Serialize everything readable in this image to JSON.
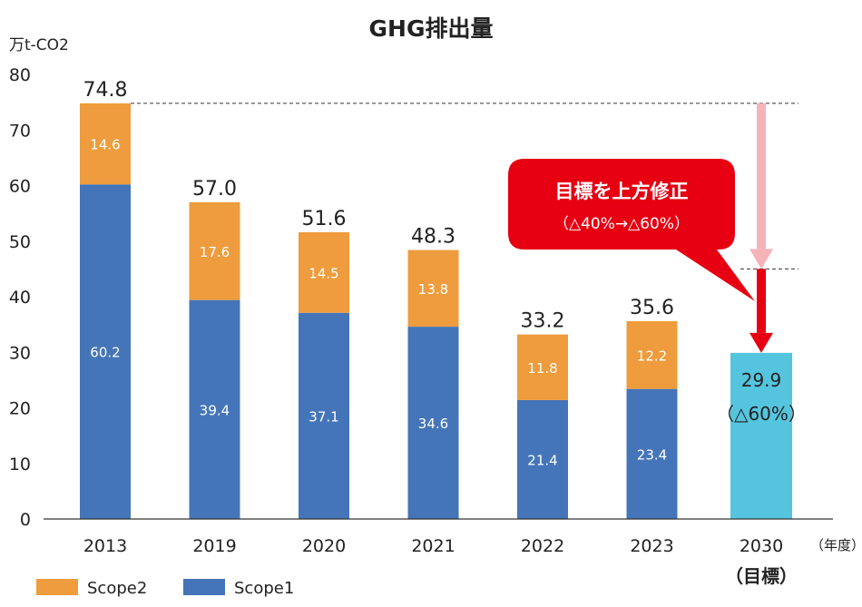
{
  "chart_data": {
    "type": "bar",
    "stacked": true,
    "title": "GHG排出量",
    "ylabel": "万t-CO2",
    "ylim": [
      0,
      80
    ],
    "yticks": [
      0,
      10,
      20,
      30,
      40,
      50,
      60,
      70,
      80
    ],
    "x_unit": "（年度）",
    "categories": [
      "2013",
      "2019",
      "2020",
      "2021",
      "2022",
      "2023",
      "2030"
    ],
    "category_sublabels": [
      "",
      "",
      "",
      "",
      "",
      "",
      "（目標）"
    ],
    "series": [
      {
        "name": "Scope1",
        "color": "#4575b9",
        "values": [
          60.2,
          39.4,
          37.1,
          34.6,
          21.4,
          23.4,
          null
        ]
      },
      {
        "name": "Scope2",
        "color": "#ee9c3d",
        "values": [
          14.6,
          17.6,
          14.5,
          13.8,
          11.8,
          12.2,
          null
        ]
      }
    ],
    "totals": [
      "74.8",
      "57.0",
      "51.6",
      "48.3",
      "33.2",
      "35.6",
      null
    ],
    "target": {
      "category": "2030",
      "value": 29.9,
      "label": "29.9",
      "sublabel": "（△60%）",
      "color": "#55c5df"
    },
    "reference_lines": [
      74.8,
      45
    ],
    "callout": {
      "line1": "目標を上方修正",
      "line2": "（△40%→△60%）",
      "color": "#e60012"
    },
    "legend": {
      "position": "bottom-left",
      "items": [
        {
          "name": "Scope2",
          "color": "#ee9c3d"
        },
        {
          "name": "Scope1",
          "color": "#4575b9"
        }
      ]
    },
    "grid": false
  }
}
